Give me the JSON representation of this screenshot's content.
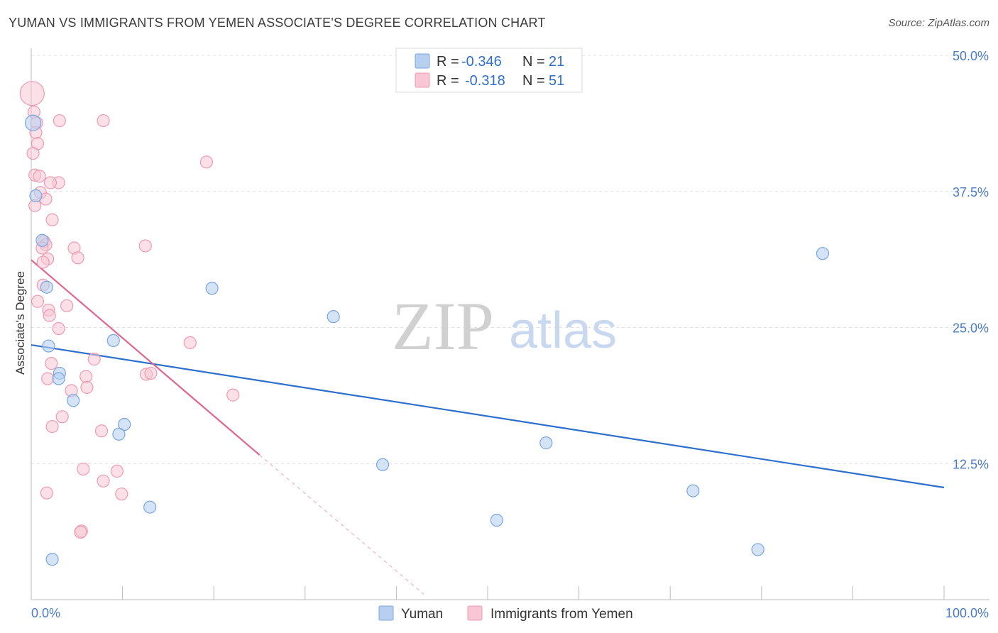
{
  "title": "YUMAN VS IMMIGRANTS FROM YEMEN ASSOCIATE'S DEGREE CORRELATION CHART",
  "source": "Source: ZipAtlas.com",
  "watermark": {
    "zip": "ZIP",
    "atlas": "atlas"
  },
  "legend": {
    "rows": [
      {
        "r_label": "R =",
        "r_value": "-0.346",
        "n_label": "N =",
        "n_value": "21"
      },
      {
        "r_label": "R =",
        "r_value": "-0.318",
        "n_label": "N =",
        "n_value": "51"
      }
    ]
  },
  "colors": {
    "yuman_fill": "#b8d0f0",
    "yuman_stroke": "#7aa6e0",
    "yuman_line": "#2e6fcc",
    "yemen_fill": "#f8c6d4",
    "yemen_stroke": "#ee9ab3",
    "yemen_line": "#e06690",
    "axis_label": "#4a7cc7",
    "grid": "#e2e2e2"
  },
  "chart_data": {
    "type": "scatter",
    "title": "YUMAN VS IMMIGRANTS FROM YEMEN ASSOCIATE'S DEGREE CORRELATION CHART",
    "xlabel": "",
    "ylabel": "Associate's Degree",
    "xlim": [
      0,
      100
    ],
    "ylim": [
      0,
      50
    ],
    "x_tick_labels": [
      "0.0%",
      "100.0%"
    ],
    "y_ticks": [
      12.5,
      25.0,
      37.5,
      50.0
    ],
    "y_tick_labels": [
      "12.5%",
      "25.0%",
      "37.5%",
      "50.0%"
    ],
    "grid": true,
    "legend_position": "top-center",
    "series": [
      {
        "name": "Yuman",
        "points": [
          [
            0.2,
            43.8
          ],
          [
            0.5,
            37.1
          ],
          [
            1.2,
            33.0
          ],
          [
            1.7,
            28.7
          ],
          [
            1.9,
            23.3
          ],
          [
            3.1,
            20.8
          ],
          [
            3.0,
            20.3
          ],
          [
            4.6,
            18.3
          ],
          [
            9.0,
            23.8
          ],
          [
            10.2,
            16.1
          ],
          [
            9.6,
            15.2
          ],
          [
            13.0,
            8.5
          ],
          [
            19.8,
            28.6
          ],
          [
            33.1,
            26.0
          ],
          [
            38.5,
            12.4
          ],
          [
            56.4,
            14.4
          ],
          [
            51.0,
            7.3
          ],
          [
            72.5,
            10.0
          ],
          [
            86.7,
            31.8
          ],
          [
            79.6,
            4.6
          ],
          [
            2.3,
            3.7
          ]
        ],
        "trend": {
          "x": [
            0,
            100
          ],
          "y": [
            23.4,
            10.3
          ]
        }
      },
      {
        "name": "Immigrants from Yemen",
        "points": [
          [
            0.1,
            46.5
          ],
          [
            0.3,
            44.8
          ],
          [
            0.6,
            43.8
          ],
          [
            0.5,
            42.9
          ],
          [
            0.7,
            41.9
          ],
          [
            0.2,
            41.0
          ],
          [
            0.4,
            39.0
          ],
          [
            0.9,
            38.9
          ],
          [
            3.0,
            38.3
          ],
          [
            2.1,
            38.3
          ],
          [
            1.0,
            37.4
          ],
          [
            1.6,
            36.8
          ],
          [
            0.4,
            36.2
          ],
          [
            2.3,
            34.9
          ],
          [
            1.4,
            32.9
          ],
          [
            1.6,
            32.6
          ],
          [
            1.2,
            32.3
          ],
          [
            1.8,
            31.3
          ],
          [
            1.3,
            31.0
          ],
          [
            4.7,
            32.3
          ],
          [
            5.1,
            31.4
          ],
          [
            12.5,
            32.5
          ],
          [
            1.3,
            28.9
          ],
          [
            0.7,
            27.4
          ],
          [
            1.9,
            26.6
          ],
          [
            2.0,
            26.1
          ],
          [
            3.9,
            27.0
          ],
          [
            3.0,
            24.9
          ],
          [
            2.2,
            21.7
          ],
          [
            1.8,
            20.3
          ],
          [
            6.9,
            22.1
          ],
          [
            6.0,
            20.5
          ],
          [
            6.1,
            19.5
          ],
          [
            4.4,
            19.2
          ],
          [
            12.6,
            20.7
          ],
          [
            13.1,
            20.8
          ],
          [
            17.4,
            23.6
          ],
          [
            22.1,
            18.8
          ],
          [
            3.4,
            16.8
          ],
          [
            2.3,
            15.9
          ],
          [
            7.7,
            15.5
          ],
          [
            5.7,
            12.0
          ],
          [
            9.4,
            11.8
          ],
          [
            7.9,
            10.9
          ],
          [
            1.7,
            9.8
          ],
          [
            9.9,
            9.7
          ],
          [
            5.5,
            6.3
          ],
          [
            5.4,
            6.2
          ],
          [
            7.9,
            44.0
          ],
          [
            19.2,
            40.2
          ],
          [
            3.1,
            44.0
          ]
        ],
        "trend": {
          "x": [
            0,
            25
          ],
          "y": [
            31.2,
            13.3
          ],
          "dashed_x": [
            25,
            43
          ],
          "dashed_y": [
            13.3,
            0.5
          ]
        }
      }
    ]
  },
  "bottom_legend": [
    {
      "label": "Yuman"
    },
    {
      "label": "Immigrants from Yemen"
    }
  ]
}
